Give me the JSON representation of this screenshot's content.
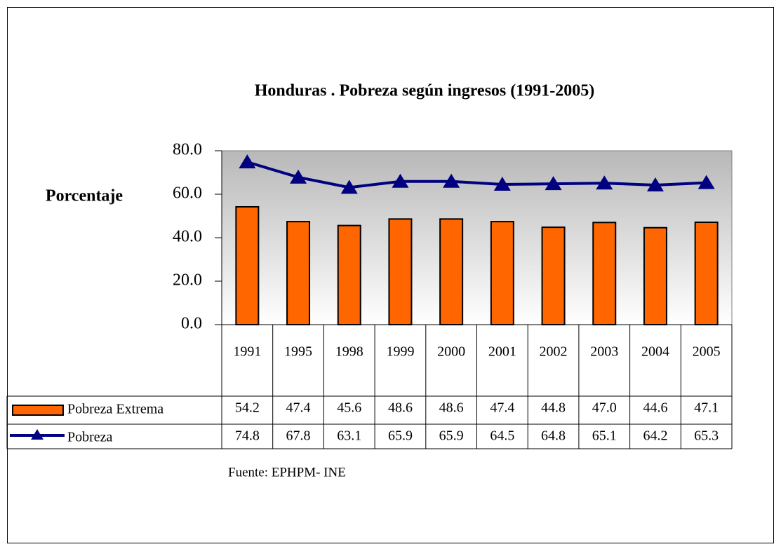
{
  "chart_data": {
    "type": "bar-line",
    "title": "Honduras . Pobreza según ingresos (1991-2005)",
    "y_label": "Porcentaje",
    "note": "Fuente: EPHPM- INE",
    "categories": [
      "1991",
      "1995",
      "1998",
      "1999",
      "2000",
      "2001",
      "2002",
      "2003",
      "2004",
      "2005"
    ],
    "series": [
      {
        "name": "Pobreza Extrema",
        "type": "bar",
        "color": "#ff6600",
        "values": [
          54.2,
          47.4,
          45.6,
          48.6,
          48.6,
          47.4,
          44.8,
          47.0,
          44.6,
          47.1
        ],
        "value_labels": [
          "54.2",
          "47.4",
          "45.6",
          "48.6",
          "48.6",
          "47.4",
          "44.8",
          "47.0",
          "44.6",
          "47.1"
        ]
      },
      {
        "name": "Pobreza",
        "type": "line",
        "color": "#000080",
        "values": [
          74.8,
          67.8,
          63.1,
          65.9,
          65.9,
          64.5,
          64.8,
          65.1,
          64.2,
          65.3
        ],
        "value_labels": [
          "74.8",
          "67.8",
          "63.1",
          "65.9",
          "65.9",
          "64.5",
          "64.8",
          "65.1",
          "64.2",
          "65.3"
        ]
      }
    ],
    "ylim": [
      0,
      80
    ],
    "yticks": [
      {
        "value": 0,
        "label": "0.0"
      },
      {
        "value": 20,
        "label": "20.0"
      },
      {
        "value": 40,
        "label": "40.0"
      },
      {
        "value": 60,
        "label": "60.0"
      },
      {
        "value": 80,
        "label": "80.0"
      }
    ]
  }
}
